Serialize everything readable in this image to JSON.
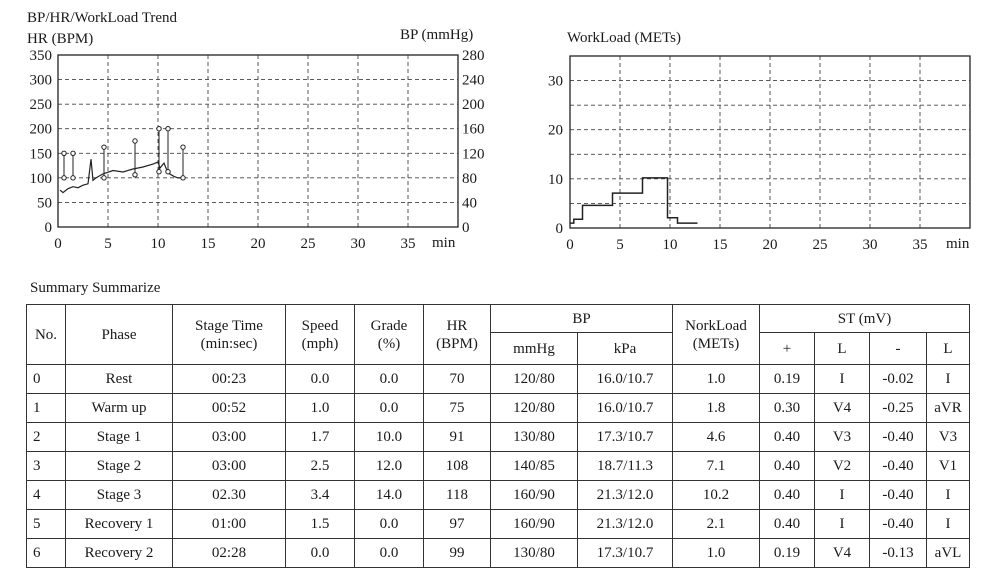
{
  "left_chart": {
    "title": "BP/HR/WorkLoad Trend",
    "left_axis_label": "HR (BPM)",
    "right_axis_label": "BP (mmHg)",
    "x_unit": "min"
  },
  "right_chart": {
    "title": "WorkLoad (METs)",
    "x_unit": "min"
  },
  "table": {
    "caption": "Summary Summarize",
    "headers": {
      "no": "No.",
      "phase": "Phase",
      "stage_time": "Stage Time",
      "stage_time_unit": "(min:sec)",
      "speed": "Speed",
      "speed_unit": "(mph)",
      "grade": "Grade",
      "grade_unit": "(%)",
      "hr": "HR",
      "hr_unit": "(BPM)",
      "bp": "BP",
      "bp_mmhg": "mmHg",
      "bp_kpa": "kPa",
      "workload": "NorkLoad",
      "workload_unit": "(METs)",
      "st": "ST (mV)",
      "st_plus": "+",
      "st_l1": "L",
      "st_minus": "-",
      "st_l2": "L"
    },
    "rows": [
      [
        "0",
        "Rest",
        "00:23",
        "0.0",
        "0.0",
        "70",
        "120/80",
        "16.0/10.7",
        "1.0",
        "0.19",
        "I",
        "-0.02",
        "I"
      ],
      [
        "1",
        "Warm up",
        "00:52",
        "1.0",
        "0.0",
        "75",
        "120/80",
        "16.0/10.7",
        "1.8",
        "0.30",
        "V4",
        "-0.25",
        "aVR"
      ],
      [
        "2",
        "Stage 1",
        "03:00",
        "1.7",
        "10.0",
        "91",
        "130/80",
        "17.3/10.7",
        "4.6",
        "0.40",
        "V3",
        "-0.40",
        "V3"
      ],
      [
        "3",
        "Stage 2",
        "03:00",
        "2.5",
        "12.0",
        "108",
        "140/85",
        "18.7/11.3",
        "7.1",
        "0.40",
        "V2",
        "-0.40",
        "V1"
      ],
      [
        "4",
        "Stage 3",
        "02.30",
        "3.4",
        "14.0",
        "118",
        "160/90",
        "21.3/12.0",
        "10.2",
        "0.40",
        "I",
        "-0.40",
        "I"
      ],
      [
        "5",
        "Recovery 1",
        "01:00",
        "1.5",
        "0.0",
        "97",
        "160/90",
        "21.3/12.0",
        "2.1",
        "0.40",
        "I",
        "-0.40",
        "I"
      ],
      [
        "6",
        "Recovery 2",
        "02:28",
        "0.0",
        "0.0",
        "99",
        "130/80",
        "17.3/10.7",
        "1.0",
        "0.19",
        "V4",
        "-0.13",
        "aVL"
      ]
    ]
  },
  "chart_data": [
    {
      "type": "line",
      "x_ticks": [
        0,
        5,
        10,
        15,
        20,
        25,
        30,
        35
      ],
      "xlim": [
        0,
        40
      ],
      "y_left_ticks": [
        0,
        50,
        100,
        150,
        200,
        250,
        300,
        350
      ],
      "ylim_left": [
        0,
        350
      ],
      "y_right_ticks": [
        0,
        40,
        80,
        120,
        160,
        200,
        240,
        280
      ],
      "ylim_right": [
        0,
        280
      ],
      "grid": true,
      "series": [
        {
          "values_x": [
            0.2,
            0.5,
            1.0,
            1.5,
            2.0,
            2.5,
            3.0,
            3.3,
            3.5,
            3.8,
            4.5,
            5.5,
            6.5,
            7.5,
            8.5,
            9.5,
            10.0,
            10.2,
            10.6,
            11.0,
            11.6,
            12.0,
            12.4
          ],
          "values_y": [
            75,
            70,
            78,
            82,
            80,
            85,
            88,
            138,
            95,
            100,
            108,
            115,
            112,
            118,
            122,
            128,
            132,
            120,
            130,
            110,
            103,
            100,
            100
          ]
        },
        {
          "markers": [
            {
              "x": 0.6,
              "systolic": 120,
              "diastolic": 80
            },
            {
              "x": 1.5,
              "systolic": 120,
              "diastolic": 80
            },
            {
              "x": 4.6,
              "systolic": 130,
              "diastolic": 80
            },
            {
              "x": 7.7,
              "systolic": 140,
              "diastolic": 85
            },
            {
              "x": 10.1,
              "systolic": 160,
              "diastolic": 90
            },
            {
              "x": 11.0,
              "systolic": 160,
              "diastolic": 90
            },
            {
              "x": 12.5,
              "systolic": 130,
              "diastolic": 80
            }
          ]
        }
      ]
    },
    {
      "type": "line",
      "x_ticks": [
        0,
        5,
        10,
        15,
        20,
        25,
        30,
        35
      ],
      "xlim": [
        0,
        40
      ],
      "y_ticks": [
        0,
        10,
        20,
        30
      ],
      "ylim": [
        0,
        35
      ],
      "grid": true,
      "series": [
        {
          "values_x": [
            0,
            0.38,
            0.38,
            1.25,
            1.25,
            4.25,
            4.25,
            7.25,
            7.25,
            9.75,
            9.75,
            10.75,
            10.75,
            12.75
          ],
          "values_y": [
            1.0,
            1.0,
            1.8,
            1.8,
            4.6,
            4.6,
            7.1,
            7.1,
            10.2,
            10.2,
            2.1,
            2.1,
            1.0,
            1.0
          ]
        }
      ]
    }
  ]
}
